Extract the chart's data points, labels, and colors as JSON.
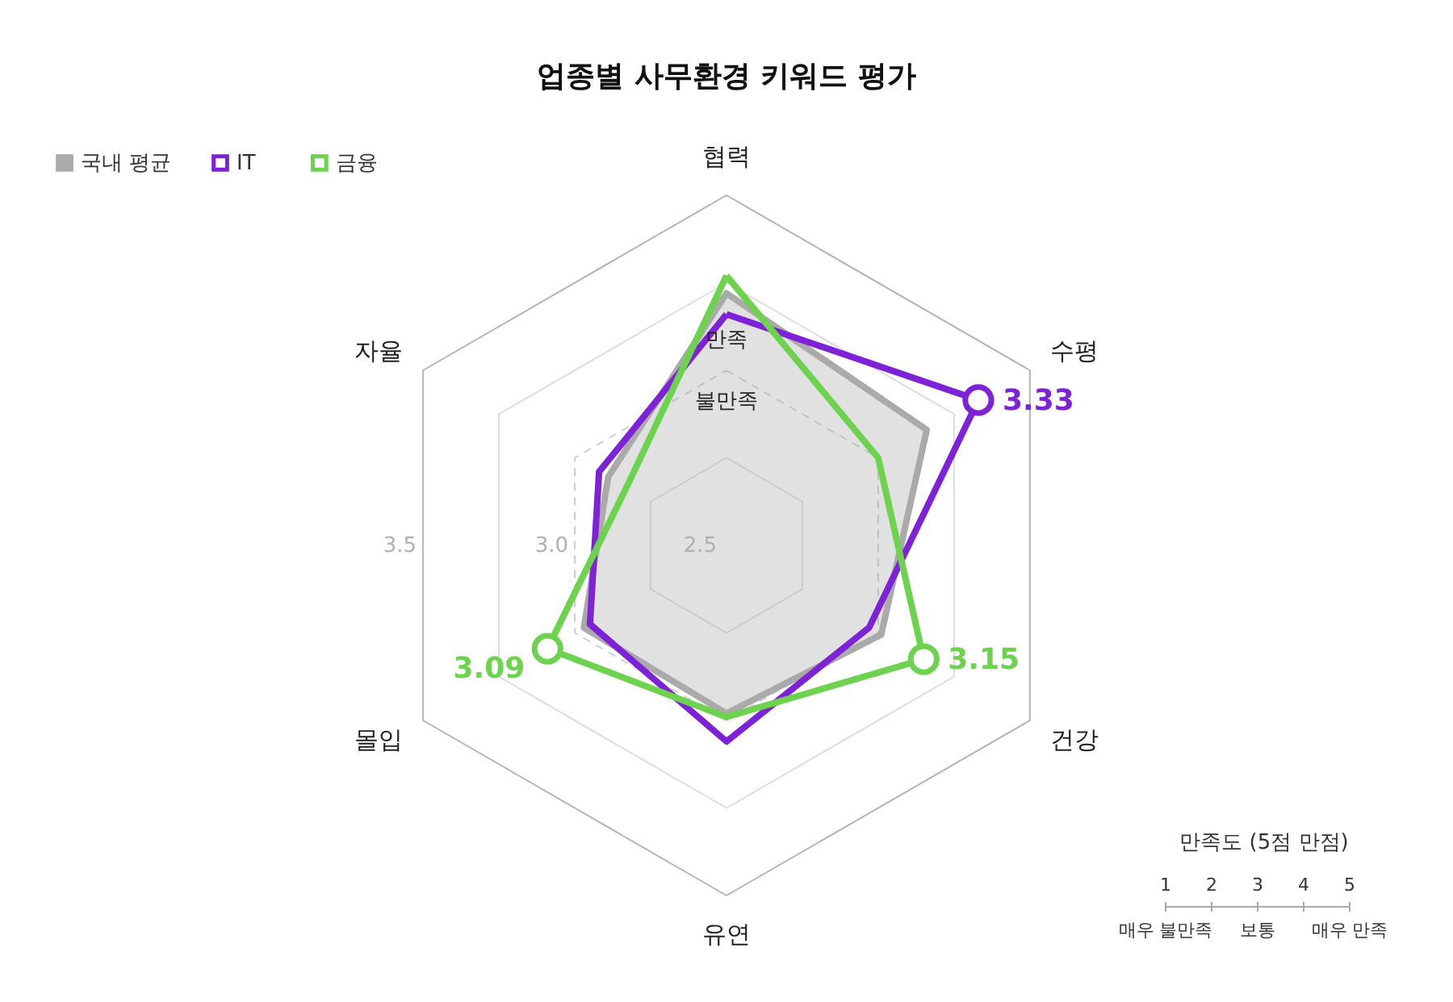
{
  "chart_data": {
    "type": "radar",
    "title": "업종별 사무환경 키워드 평가",
    "categories": [
      "협력",
      "수평",
      "건강",
      "유연",
      "몰입",
      "자율"
    ],
    "ylim": [
      2.5,
      3.5
    ],
    "yticks": [
      2.5,
      {
        "value": 3.0,
        "label": "3.0"
      },
      3.5
    ],
    "grid": true,
    "legend": "top left",
    "line_style": "solid",
    "marker": "none",
    "series": [
      {
        "name": "국내 평균",
        "type": "area",
        "color": "#aaaaaa",
        "values": [
          3.22,
          3.16,
          3.01,
          2.98,
          2.97,
          2.89
        ]
      },
      {
        "name": "IT",
        "color": "#7d22d6",
        "values": [
          3.16,
          3.33,
          2.97,
          3.06,
          2.95,
          2.92
        ],
        "value_labels": [
          null,
          "3.33",
          null,
          null,
          null,
          null
        ]
      },
      {
        "name": "금융",
        "color": "#6dd24e",
        "values": [
          3.27,
          3.0,
          3.15,
          2.99,
          3.09,
          2.83
        ],
        "value_labels": [
          null,
          null,
          "3.15",
          null,
          "3.09",
          null
        ]
      }
    ],
    "annotations": [
      "만족",
      "불만족",
      "만족도 (5점 만점)",
      "1",
      "2",
      "3",
      "4",
      "5",
      "매우 불만족",
      "보통",
      "매우 만족"
    ]
  }
}
